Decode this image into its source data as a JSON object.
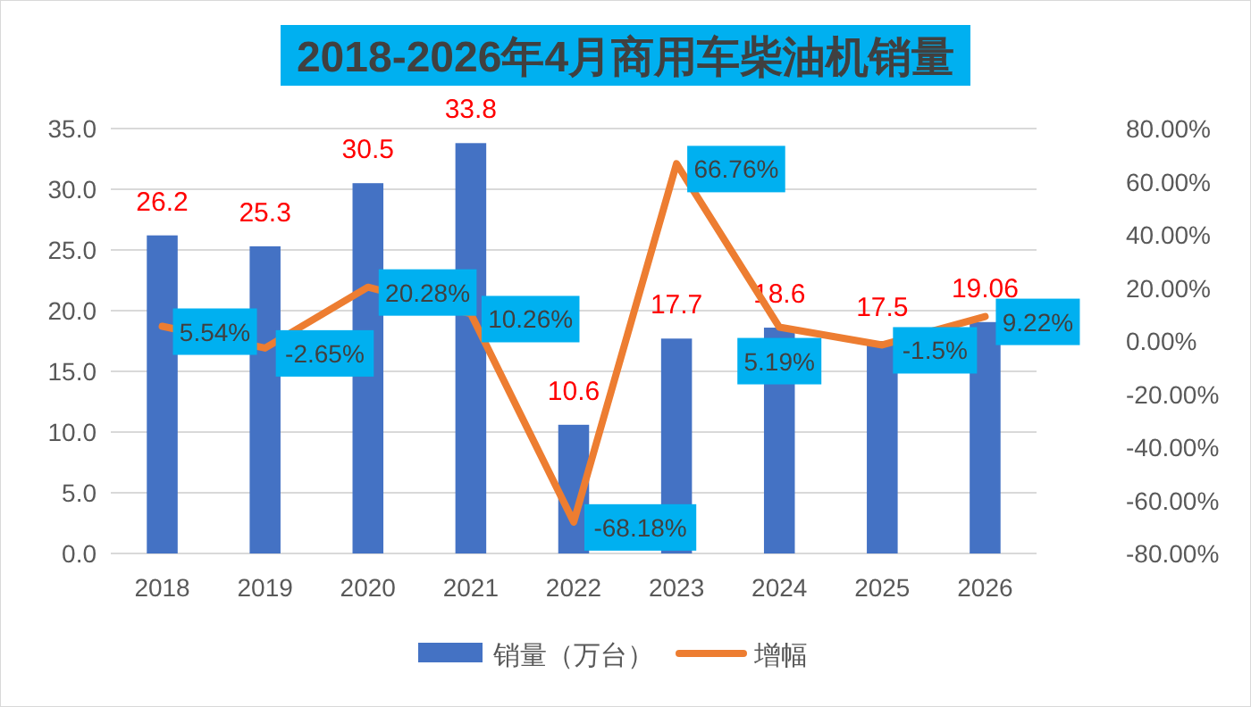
{
  "chart_data": {
    "type": "bar",
    "title": "2018-2026年4月商用车柴油机销量",
    "categories": [
      "2018",
      "2019",
      "2020",
      "2021",
      "2022",
      "2023",
      "2024",
      "2025",
      "2026"
    ],
    "series": [
      {
        "name": "销量（万台）",
        "color": "#4472c4",
        "values": [
          26.2,
          25.3,
          30.5,
          33.8,
          10.6,
          17.7,
          18.6,
          17.5,
          19.06
        ],
        "value_labels": [
          "26.2",
          "25.3",
          "30.5",
          "33.8",
          "10.6",
          "17.7",
          "18.6",
          "17.5",
          "19.06"
        ]
      },
      {
        "name": "增幅",
        "type": "line",
        "axis": "y2",
        "color": "#ed7d31",
        "values": [
          5.54,
          -2.65,
          20.28,
          10.26,
          -68.18,
          66.76,
          5.19,
          -1.5,
          9.22
        ],
        "value_labels": [
          "5.54%",
          "-2.65%",
          "20.28%",
          "10.26%",
          "-68.18%",
          "66.76%",
          "5.19%",
          "-1.5%",
          "9.22%"
        ]
      }
    ],
    "ylim": [
      0,
      35
    ],
    "yticks": [
      {
        "value": 0,
        "label": "0.0"
      },
      {
        "value": 5,
        "label": "5.0"
      },
      {
        "value": 10,
        "label": "10.0"
      },
      {
        "value": 15,
        "label": "15.0"
      },
      {
        "value": 20,
        "label": "20.0"
      },
      {
        "value": 25,
        "label": "25.0"
      },
      {
        "value": 30,
        "label": "30.0"
      },
      {
        "value": 35,
        "label": "35.0"
      }
    ],
    "y2lim": [
      -80,
      80
    ],
    "y2ticks": [
      {
        "value": -80,
        "label": "-80.00%"
      },
      {
        "value": -60,
        "label": "-60.00%"
      },
      {
        "value": -40,
        "label": "-40.00%"
      },
      {
        "value": -20,
        "label": "-20.00%"
      },
      {
        "value": 0,
        "label": "0.00%"
      },
      {
        "value": 20,
        "label": "20.00%"
      },
      {
        "value": 40,
        "label": "40.00%"
      },
      {
        "value": 60,
        "label": "60.00%"
      },
      {
        "value": 80,
        "label": "80.00%"
      }
    ],
    "grid": "y",
    "legend": "bottom",
    "marker": "none",
    "line_style": "solid"
  }
}
